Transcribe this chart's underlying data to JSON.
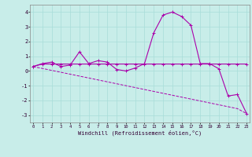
{
  "xlabel": "Windchill (Refroidissement éolien,°C)",
  "background_color": "#c8ede9",
  "grid_color": "#a8ddd8",
  "line_color": "#aa00aa",
  "x_hours": [
    0,
    1,
    2,
    3,
    4,
    5,
    6,
    7,
    8,
    9,
    10,
    11,
    12,
    13,
    14,
    15,
    16,
    17,
    18,
    19,
    20,
    21,
    22,
    23
  ],
  "y_temp": [
    0.3,
    0.5,
    0.6,
    0.3,
    0.4,
    1.3,
    0.5,
    0.7,
    0.6,
    0.1,
    0.0,
    0.2,
    0.5,
    2.6,
    3.8,
    4.0,
    3.7,
    3.1,
    0.5,
    0.5,
    0.15,
    -1.7,
    -1.6,
    -2.9
  ],
  "y_flat": [
    0.3,
    0.47,
    0.47,
    0.47,
    0.47,
    0.47,
    0.47,
    0.47,
    0.47,
    0.47,
    0.47,
    0.47,
    0.47,
    0.47,
    0.47,
    0.47,
    0.47,
    0.47,
    0.47,
    0.47,
    0.47,
    0.47,
    0.47,
    0.47
  ],
  "y_linear": [
    0.3,
    0.17,
    0.04,
    -0.09,
    -0.22,
    -0.35,
    -0.48,
    -0.61,
    -0.74,
    -0.87,
    -1.0,
    -1.13,
    -1.26,
    -1.39,
    -1.52,
    -1.65,
    -1.78,
    -1.91,
    -2.04,
    -2.17,
    -2.3,
    -2.43,
    -2.56,
    -2.9
  ],
  "ylim": [
    -3.5,
    4.5
  ],
  "yticks": [
    -3,
    -2,
    -1,
    0,
    1,
    2,
    3,
    4
  ],
  "xticks": [
    0,
    1,
    2,
    3,
    4,
    5,
    6,
    7,
    8,
    9,
    10,
    11,
    12,
    13,
    14,
    15,
    16,
    17,
    18,
    19,
    20,
    21,
    22,
    23
  ]
}
